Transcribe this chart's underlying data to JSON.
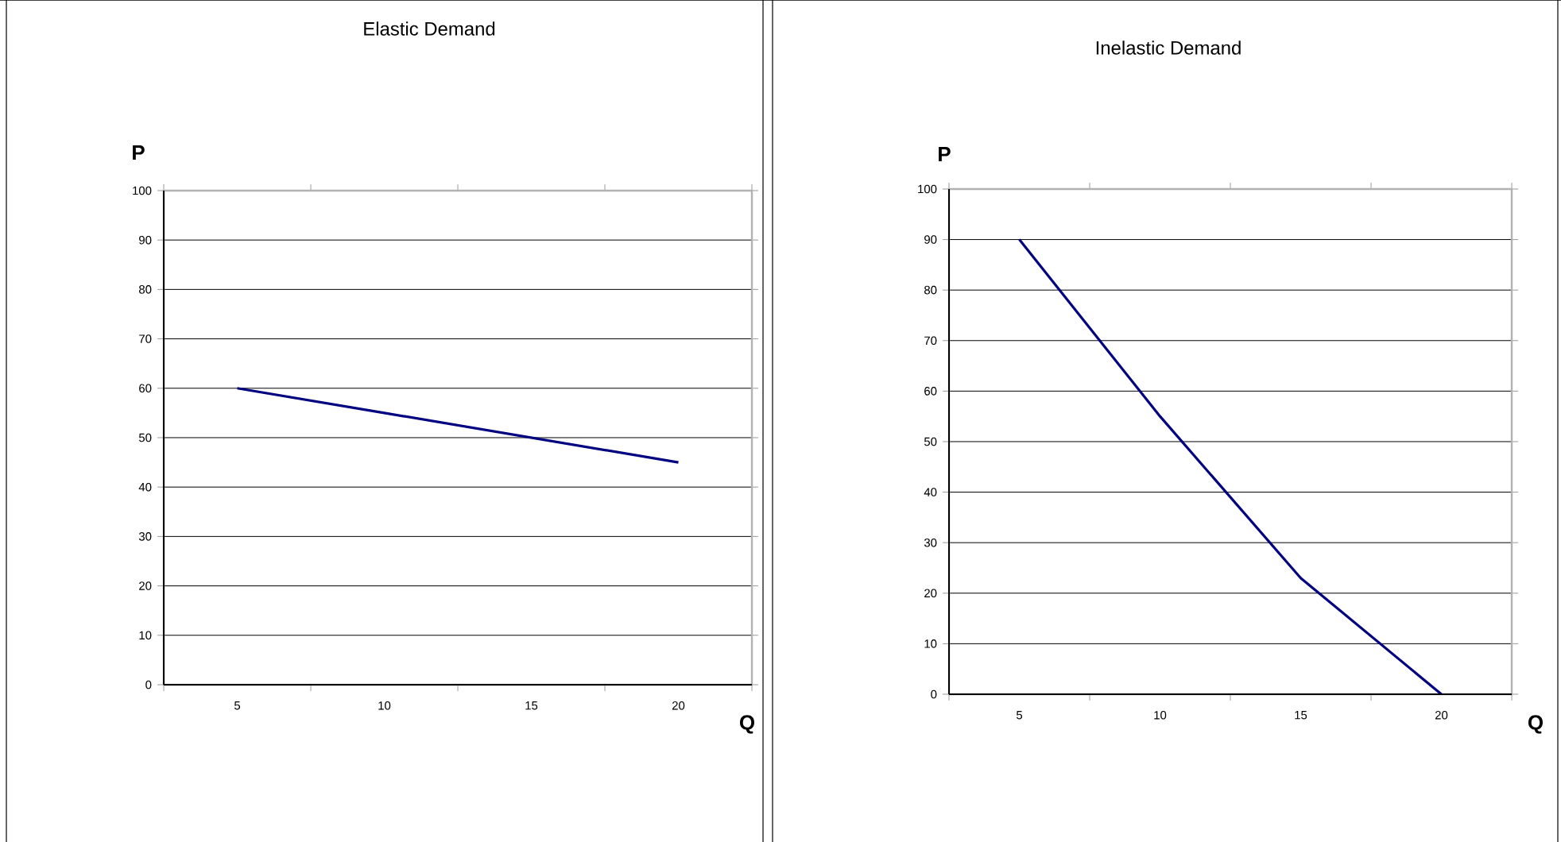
{
  "chart_data": [
    {
      "type": "line",
      "title": "Elastic Demand",
      "ylabel": "P",
      "xlabel": "Q",
      "categories": [
        "5",
        "10",
        "15",
        "20"
      ],
      "values": [
        60,
        55,
        50,
        45
      ],
      "color": "#000080",
      "ylim": [
        0,
        100
      ],
      "yticks": [
        0,
        10,
        20,
        30,
        40,
        50,
        60,
        70,
        80,
        90,
        100
      ],
      "grid": "y",
      "marker": "none"
    },
    {
      "type": "line",
      "title": "Inelastic Demand",
      "ylabel": "P",
      "xlabel": "Q",
      "categories": [
        "5",
        "10",
        "15",
        "20"
      ],
      "values": [
        90,
        55,
        23,
        0
      ],
      "color": "#000080",
      "ylim": [
        0,
        100
      ],
      "yticks": [
        0,
        10,
        20,
        30,
        40,
        50,
        60,
        70,
        80,
        90,
        100
      ],
      "grid": "y",
      "marker": "none"
    }
  ]
}
